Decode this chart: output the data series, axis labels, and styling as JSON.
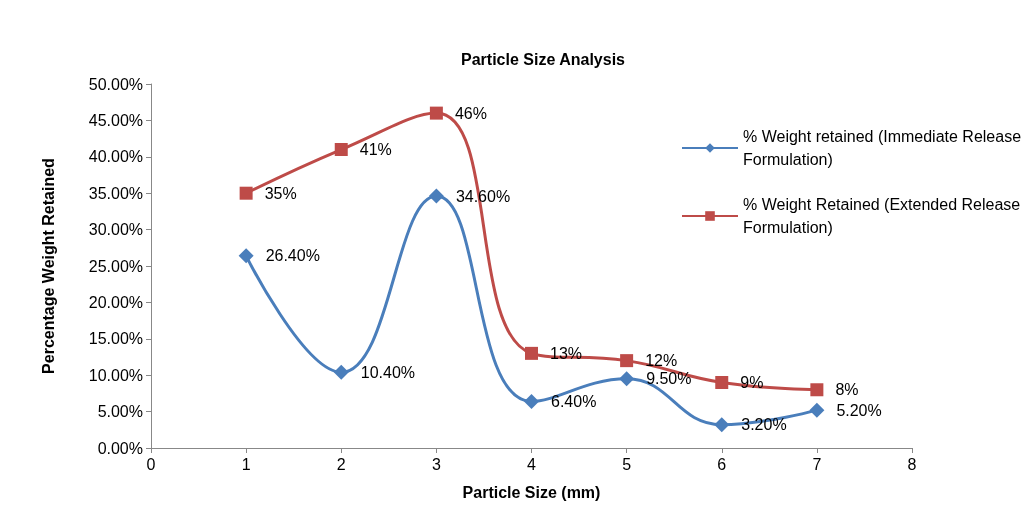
{
  "chart_data": {
    "type": "line",
    "title": "Particle Size Analysis",
    "xlabel": "Particle Size (mm)",
    "ylabel": "Percentage Weight Retained",
    "xlim": [
      0,
      8
    ],
    "xticks": [
      0,
      1,
      2,
      3,
      4,
      5,
      6,
      7,
      8
    ],
    "ylim": [
      0,
      50
    ],
    "yticks": [
      {
        "value": 0,
        "label": "0.00%"
      },
      {
        "value": 5,
        "label": "5.00%"
      },
      {
        "value": 10,
        "label": "10.00%"
      },
      {
        "value": 15,
        "label": "15.00%"
      },
      {
        "value": 20,
        "label": "20.00%"
      },
      {
        "value": 25,
        "label": "25.00%"
      },
      {
        "value": 30,
        "label": "30.00%"
      },
      {
        "value": 35,
        "label": "35.00%"
      },
      {
        "value": 40,
        "label": "40.00%"
      },
      {
        "value": 45,
        "label": "45.00%"
      },
      {
        "value": 50,
        "label": "50.00%"
      }
    ],
    "x": [
      1,
      2,
      3,
      4,
      5,
      6,
      7
    ],
    "series": [
      {
        "name": "% Weight retained (Immediate Release Formulation)",
        "color": "#4a7ebb",
        "marker": "diamond",
        "values": [
          26.4,
          10.4,
          34.6,
          6.4,
          9.5,
          3.2,
          5.2
        ],
        "value_labels": [
          "26.40%",
          "10.40%",
          "34.60%",
          "6.40%",
          "9.50%",
          "3.20%",
          "5.20%"
        ]
      },
      {
        "name": "% Weight Retained (Extended Release Formulation)",
        "color": "#be4b48",
        "marker": "square",
        "values": [
          35,
          41,
          46,
          13,
          12,
          9,
          8
        ],
        "value_labels": [
          "35%",
          "41%",
          "46%",
          "13%",
          "12%",
          "9%",
          "8%"
        ]
      }
    ],
    "grid": false,
    "legend": "right"
  }
}
